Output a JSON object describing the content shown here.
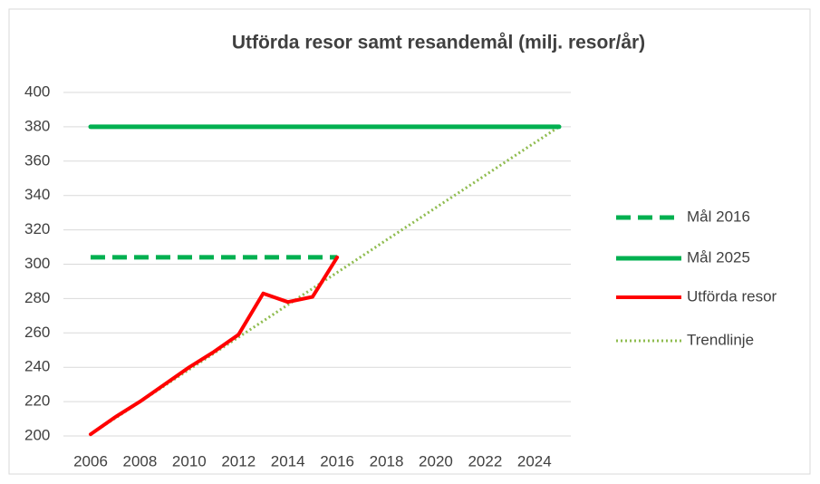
{
  "chart_data": {
    "type": "line",
    "title": "Utförda resor samt resandemål (milj. resor/år)",
    "x": [
      2006,
      2007,
      2008,
      2009,
      2010,
      2011,
      2012,
      2013,
      2014,
      2015,
      2016,
      2017,
      2018,
      2019,
      2020,
      2021,
      2022,
      2023,
      2024,
      2025
    ],
    "xlim": [
      2006,
      2025
    ],
    "xticks": [
      2006,
      2008,
      2010,
      2012,
      2014,
      2016,
      2018,
      2020,
      2022,
      2024
    ],
    "ylim": [
      200,
      400
    ],
    "yticks": [
      200,
      220,
      240,
      260,
      280,
      300,
      320,
      340,
      360,
      380,
      400
    ],
    "grid": true,
    "legend": "right",
    "series": [
      {
        "name": "Mål 2016",
        "color": "#00b050",
        "style": "dashed",
        "values": [
          304,
          304,
          304,
          304,
          304,
          304,
          304,
          304,
          304,
          304,
          304,
          null,
          null,
          null,
          null,
          null,
          null,
          null,
          null,
          null
        ]
      },
      {
        "name": "Mål 2025",
        "color": "#00b050",
        "style": "solid",
        "values": [
          380,
          380,
          380,
          380,
          380,
          380,
          380,
          380,
          380,
          380,
          380,
          380,
          380,
          380,
          380,
          380,
          380,
          380,
          380,
          380
        ]
      },
      {
        "name": "Utförda resor",
        "color": "#ff0000",
        "style": "solid",
        "values": [
          201,
          211,
          220,
          230,
          240,
          249,
          259,
          283,
          278,
          281,
          304,
          null,
          null,
          null,
          null,
          null,
          null,
          null,
          null,
          null
        ]
      },
      {
        "name": "Trendlinje",
        "color": "#8fbc4f",
        "style": "dotted",
        "values": [
          201,
          210.4,
          219.8,
          229.3,
          238.7,
          248.1,
          257.5,
          266.9,
          276.4,
          285.8,
          295.2,
          304.6,
          314.1,
          323.5,
          332.9,
          342.3,
          351.7,
          361.2,
          370.6,
          380
        ]
      }
    ]
  }
}
